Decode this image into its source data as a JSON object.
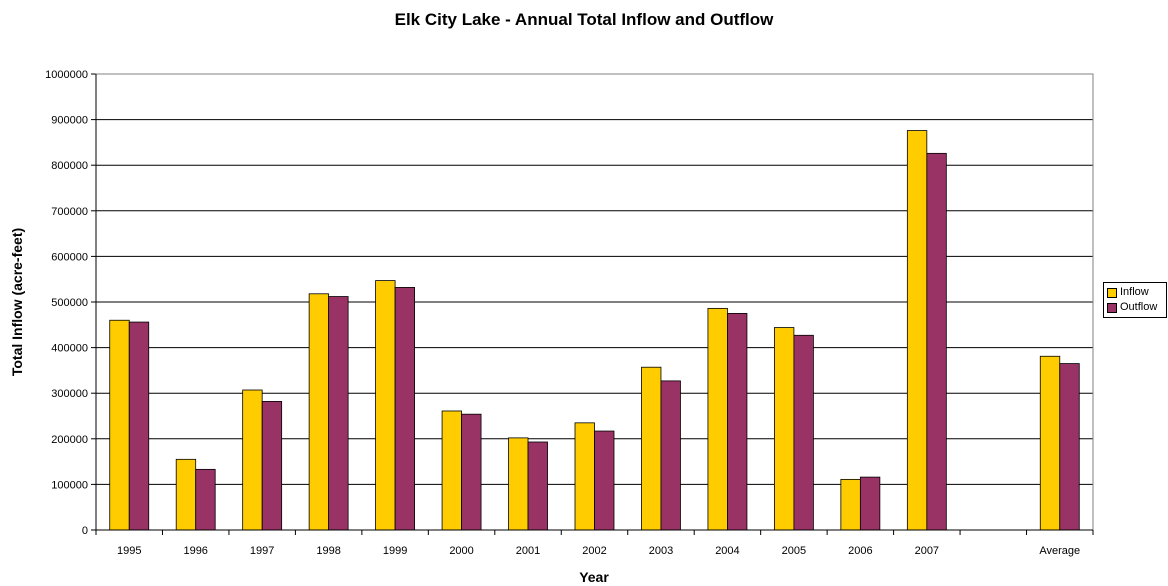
{
  "chart_data": {
    "type": "bar",
    "title": "Elk City Lake - Annual Total Inflow and Outflow",
    "xlabel": "Year",
    "ylabel": "Total Inflow (acre-feet)",
    "categories": [
      "1995",
      "1996",
      "1997",
      "1998",
      "1999",
      "2000",
      "2001",
      "2002",
      "2003",
      "2004",
      "2005",
      "2006",
      "2007",
      "",
      "Average"
    ],
    "series": [
      {
        "name": "Inflow",
        "color": "#FFCC00",
        "values": [
          460000,
          155000,
          307000,
          518000,
          547000,
          261000,
          202000,
          235000,
          357000,
          486000,
          444000,
          111000,
          876000,
          null,
          381000
        ]
      },
      {
        "name": "Outflow",
        "color": "#993366",
        "values": [
          456000,
          133000,
          282000,
          512000,
          532000,
          254000,
          193000,
          217000,
          327000,
          475000,
          427000,
          116000,
          826000,
          null,
          365000
        ]
      }
    ],
    "ylim": [
      0,
      1000000
    ],
    "yticks": [
      "0",
      "100000",
      "200000",
      "300000",
      "400000",
      "500000",
      "600000",
      "700000",
      "800000",
      "900000",
      "1000000"
    ],
    "grid": true,
    "legend": "right"
  }
}
